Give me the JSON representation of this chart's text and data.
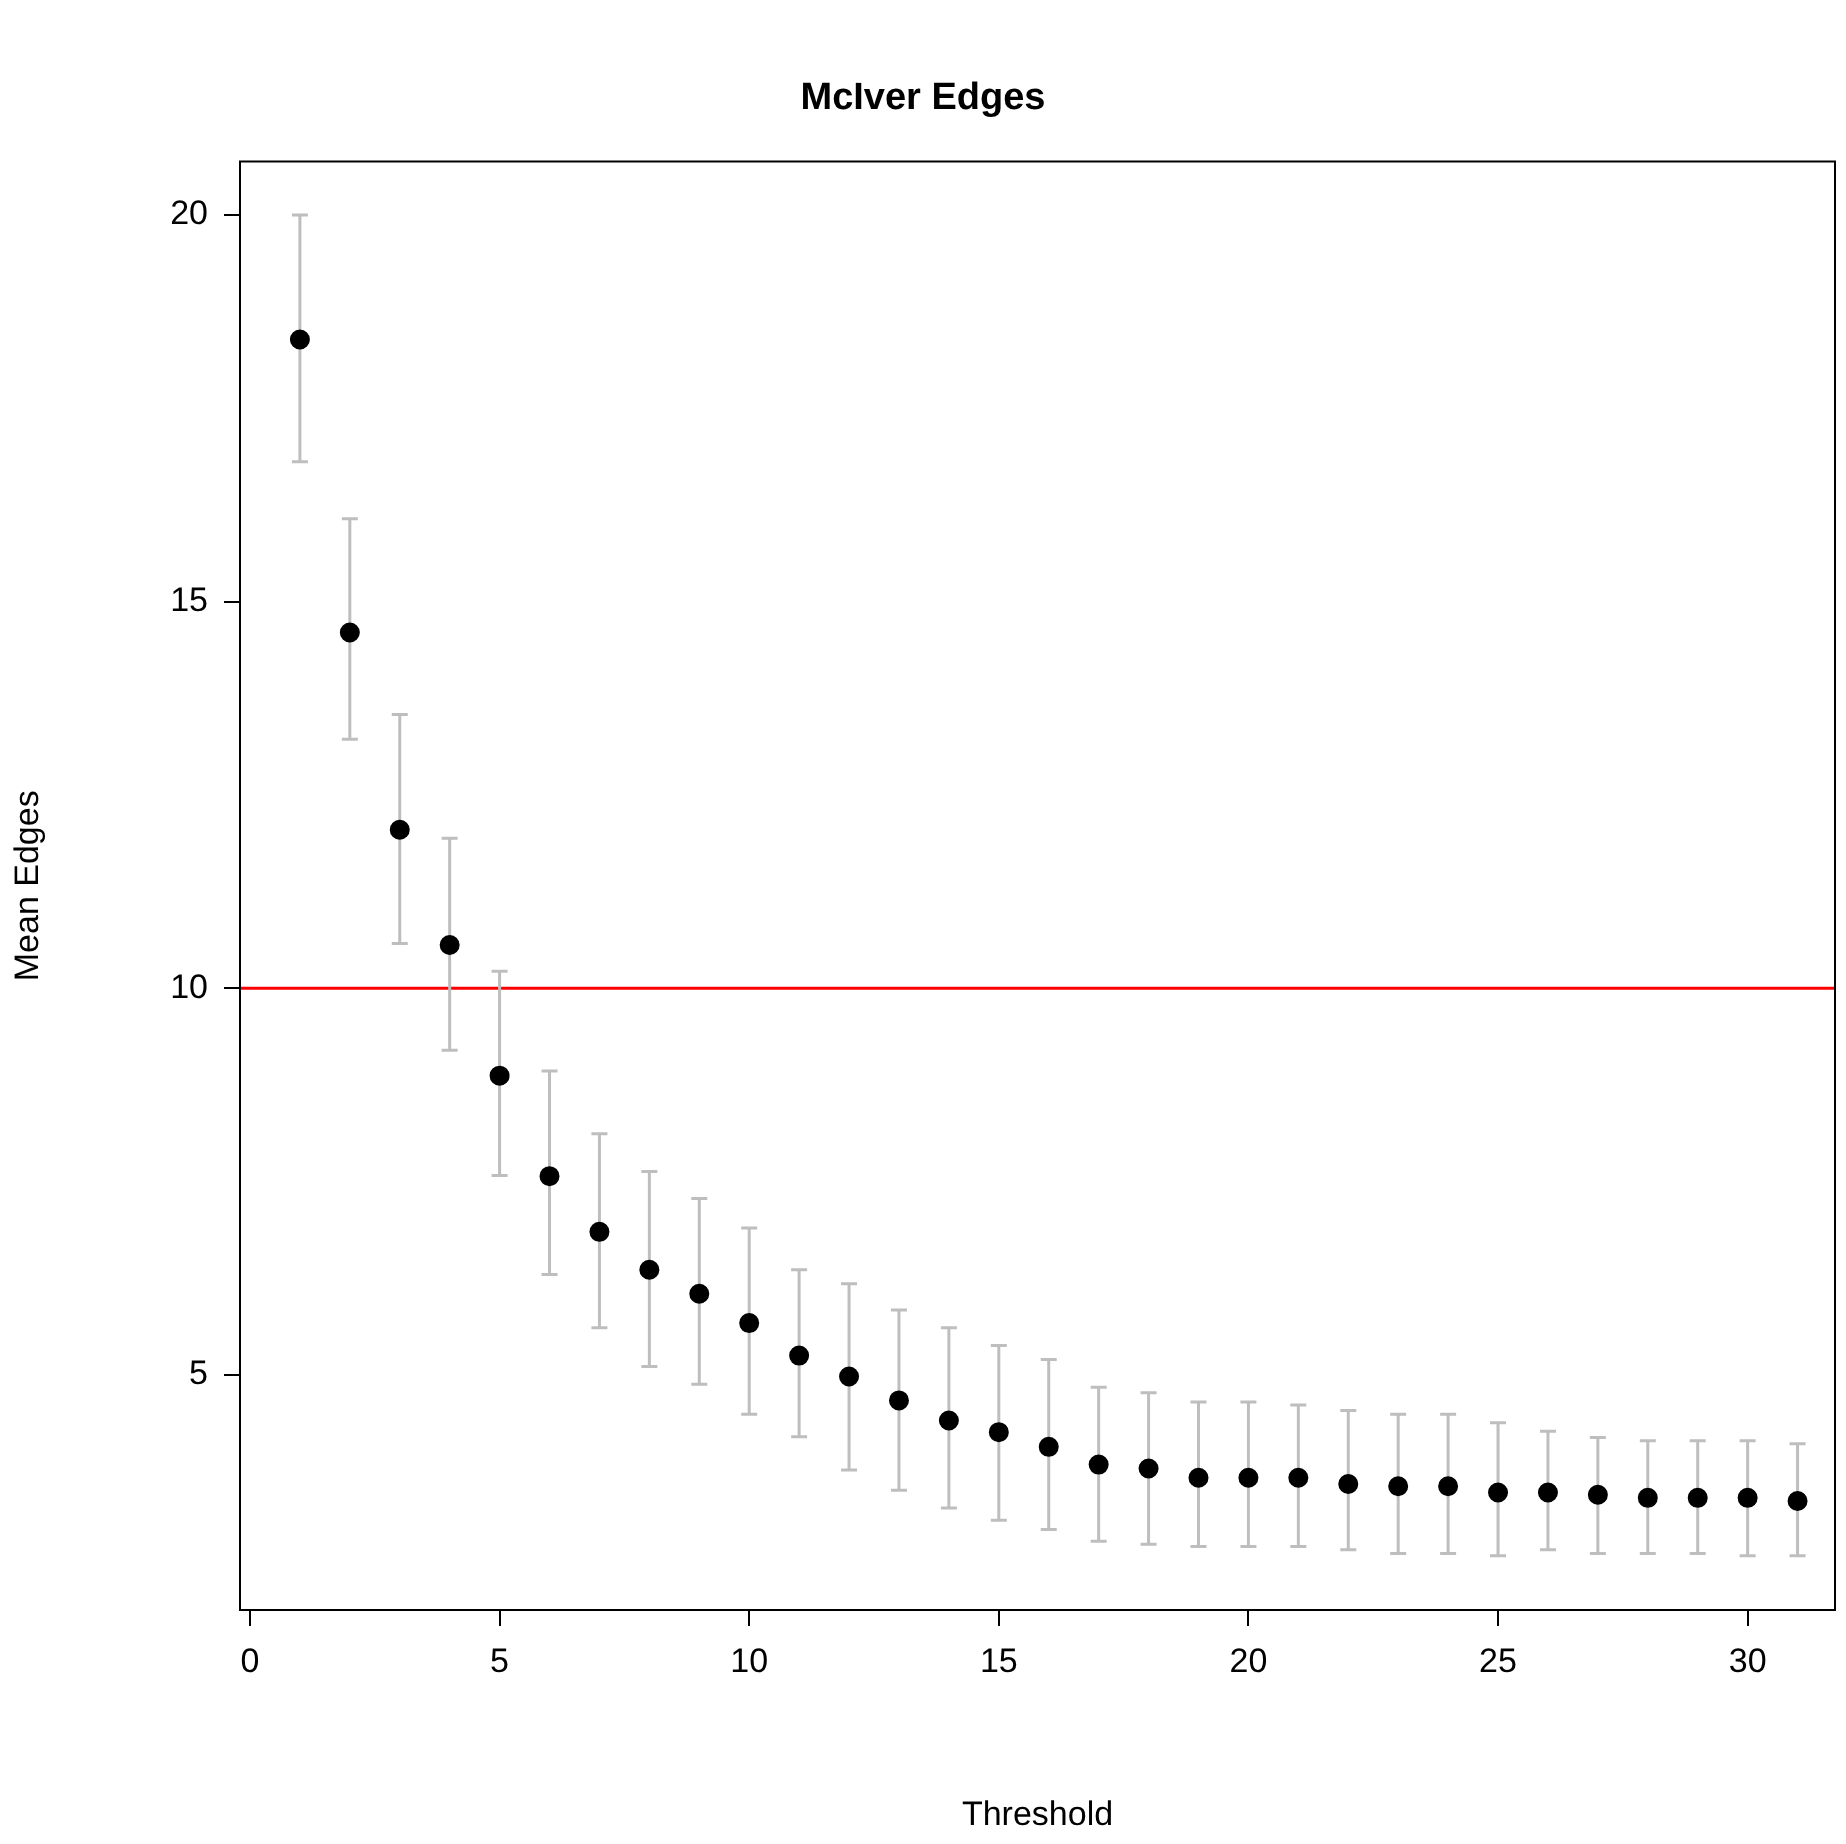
{
  "chart_data": {
    "type": "scatter",
    "title": "McIver Edges",
    "xlabel": "Threshold",
    "ylabel": "Mean Edges",
    "x": [
      1,
      2,
      3,
      4,
      5,
      6,
      7,
      8,
      9,
      10,
      11,
      12,
      13,
      14,
      15,
      16,
      17,
      18,
      19,
      20,
      21,
      22,
      23,
      24,
      25,
      26,
      27,
      28,
      29,
      30,
      31
    ],
    "series": [
      {
        "color": "#000000",
        "values": [
          18.39,
          14.6,
          12.05,
          10.56,
          8.87,
          7.57,
          6.85,
          6.36,
          6.05,
          5.67,
          5.25,
          4.98,
          4.67,
          4.41,
          4.26,
          4.07,
          3.84,
          3.79,
          3.67,
          3.67,
          3.67,
          3.59,
          3.56,
          3.56,
          3.48,
          3.48,
          3.45,
          3.41,
          3.41,
          3.41,
          3.37
        ],
        "errors": [
          [
            16.81,
            20.0
          ],
          [
            13.22,
            16.07
          ],
          [
            10.58,
            13.54
          ],
          [
            9.2,
            11.94
          ],
          [
            7.58,
            10.22
          ],
          [
            6.3,
            8.93
          ],
          [
            5.61,
            8.12
          ],
          [
            5.11,
            7.63
          ],
          [
            4.88,
            7.28
          ],
          [
            4.49,
            6.9
          ],
          [
            4.2,
            6.36
          ],
          [
            3.77,
            6.18
          ],
          [
            3.51,
            5.84
          ],
          [
            3.28,
            5.61
          ],
          [
            3.12,
            5.38
          ],
          [
            3.0,
            5.2
          ],
          [
            2.85,
            4.84
          ],
          [
            2.81,
            4.77
          ],
          [
            2.78,
            4.65
          ],
          [
            2.78,
            4.65
          ],
          [
            2.78,
            4.61
          ],
          [
            2.74,
            4.54
          ],
          [
            2.69,
            4.49
          ],
          [
            2.69,
            4.49
          ],
          [
            2.66,
            4.38
          ],
          [
            2.74,
            4.27
          ],
          [
            2.69,
            4.19
          ],
          [
            2.69,
            4.15
          ],
          [
            2.69,
            4.15
          ],
          [
            2.66,
            4.15
          ],
          [
            2.66,
            4.11
          ]
        ]
      }
    ],
    "marker": "circle",
    "grid": false,
    "legend": false,
    "xlim": [
      -0.2,
      31.75
    ],
    "xticks": [
      0,
      5,
      10,
      15,
      20,
      25,
      30
    ],
    "ylim": [
      1.96,
      20.69
    ],
    "yticks": [
      5,
      10,
      15,
      20
    ],
    "ref_lines": [
      {
        "axis": "y",
        "value": 10,
        "color": "#ff0000"
      }
    ]
  }
}
